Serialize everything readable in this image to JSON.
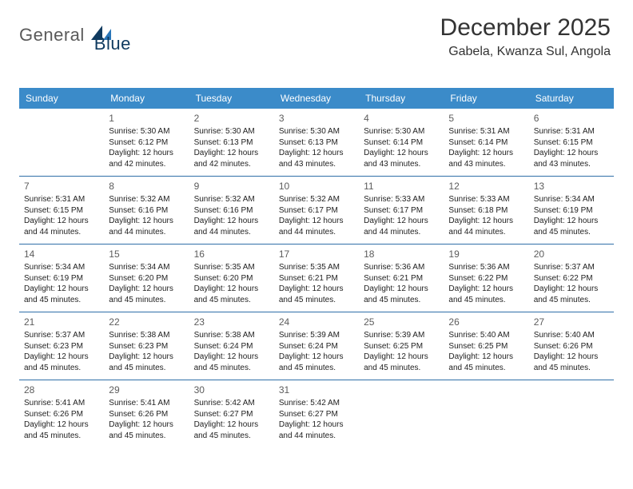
{
  "logo": {
    "part1": "General",
    "part2": "Blue"
  },
  "title": "December 2025",
  "subtitle": "Gabela, Kwanza Sul, Angola",
  "colors": {
    "header_blue": "#3b8bc9",
    "logo_dark": "#0f3a5f",
    "divider": "#2f6fa8",
    "daynum": "#5c5c5c",
    "text": "#1e1e1e",
    "background": "#ffffff"
  },
  "dow": [
    "Sunday",
    "Monday",
    "Tuesday",
    "Wednesday",
    "Thursday",
    "Friday",
    "Saturday"
  ],
  "cell": {
    "sunrise_label": "Sunrise:",
    "sunset_label": "Sunset:",
    "daylight_label": "Daylight:"
  },
  "weeks": [
    [
      null,
      {
        "n": "1",
        "sr": "5:30 AM",
        "ss": "6:12 PM",
        "dl": "12 hours and 42 minutes."
      },
      {
        "n": "2",
        "sr": "5:30 AM",
        "ss": "6:13 PM",
        "dl": "12 hours and 42 minutes."
      },
      {
        "n": "3",
        "sr": "5:30 AM",
        "ss": "6:13 PM",
        "dl": "12 hours and 43 minutes."
      },
      {
        "n": "4",
        "sr": "5:30 AM",
        "ss": "6:14 PM",
        "dl": "12 hours and 43 minutes."
      },
      {
        "n": "5",
        "sr": "5:31 AM",
        "ss": "6:14 PM",
        "dl": "12 hours and 43 minutes."
      },
      {
        "n": "6",
        "sr": "5:31 AM",
        "ss": "6:15 PM",
        "dl": "12 hours and 43 minutes."
      }
    ],
    [
      {
        "n": "7",
        "sr": "5:31 AM",
        "ss": "6:15 PM",
        "dl": "12 hours and 44 minutes."
      },
      {
        "n": "8",
        "sr": "5:32 AM",
        "ss": "6:16 PM",
        "dl": "12 hours and 44 minutes."
      },
      {
        "n": "9",
        "sr": "5:32 AM",
        "ss": "6:16 PM",
        "dl": "12 hours and 44 minutes."
      },
      {
        "n": "10",
        "sr": "5:32 AM",
        "ss": "6:17 PM",
        "dl": "12 hours and 44 minutes."
      },
      {
        "n": "11",
        "sr": "5:33 AM",
        "ss": "6:17 PM",
        "dl": "12 hours and 44 minutes."
      },
      {
        "n": "12",
        "sr": "5:33 AM",
        "ss": "6:18 PM",
        "dl": "12 hours and 44 minutes."
      },
      {
        "n": "13",
        "sr": "5:34 AM",
        "ss": "6:19 PM",
        "dl": "12 hours and 45 minutes."
      }
    ],
    [
      {
        "n": "14",
        "sr": "5:34 AM",
        "ss": "6:19 PM",
        "dl": "12 hours and 45 minutes."
      },
      {
        "n": "15",
        "sr": "5:34 AM",
        "ss": "6:20 PM",
        "dl": "12 hours and 45 minutes."
      },
      {
        "n": "16",
        "sr": "5:35 AM",
        "ss": "6:20 PM",
        "dl": "12 hours and 45 minutes."
      },
      {
        "n": "17",
        "sr": "5:35 AM",
        "ss": "6:21 PM",
        "dl": "12 hours and 45 minutes."
      },
      {
        "n": "18",
        "sr": "5:36 AM",
        "ss": "6:21 PM",
        "dl": "12 hours and 45 minutes."
      },
      {
        "n": "19",
        "sr": "5:36 AM",
        "ss": "6:22 PM",
        "dl": "12 hours and 45 minutes."
      },
      {
        "n": "20",
        "sr": "5:37 AM",
        "ss": "6:22 PM",
        "dl": "12 hours and 45 minutes."
      }
    ],
    [
      {
        "n": "21",
        "sr": "5:37 AM",
        "ss": "6:23 PM",
        "dl": "12 hours and 45 minutes."
      },
      {
        "n": "22",
        "sr": "5:38 AM",
        "ss": "6:23 PM",
        "dl": "12 hours and 45 minutes."
      },
      {
        "n": "23",
        "sr": "5:38 AM",
        "ss": "6:24 PM",
        "dl": "12 hours and 45 minutes."
      },
      {
        "n": "24",
        "sr": "5:39 AM",
        "ss": "6:24 PM",
        "dl": "12 hours and 45 minutes."
      },
      {
        "n": "25",
        "sr": "5:39 AM",
        "ss": "6:25 PM",
        "dl": "12 hours and 45 minutes."
      },
      {
        "n": "26",
        "sr": "5:40 AM",
        "ss": "6:25 PM",
        "dl": "12 hours and 45 minutes."
      },
      {
        "n": "27",
        "sr": "5:40 AM",
        "ss": "6:26 PM",
        "dl": "12 hours and 45 minutes."
      }
    ],
    [
      {
        "n": "28",
        "sr": "5:41 AM",
        "ss": "6:26 PM",
        "dl": "12 hours and 45 minutes."
      },
      {
        "n": "29",
        "sr": "5:41 AM",
        "ss": "6:26 PM",
        "dl": "12 hours and 45 minutes."
      },
      {
        "n": "30",
        "sr": "5:42 AM",
        "ss": "6:27 PM",
        "dl": "12 hours and 45 minutes."
      },
      {
        "n": "31",
        "sr": "5:42 AM",
        "ss": "6:27 PM",
        "dl": "12 hours and 44 minutes."
      },
      null,
      null,
      null
    ]
  ]
}
